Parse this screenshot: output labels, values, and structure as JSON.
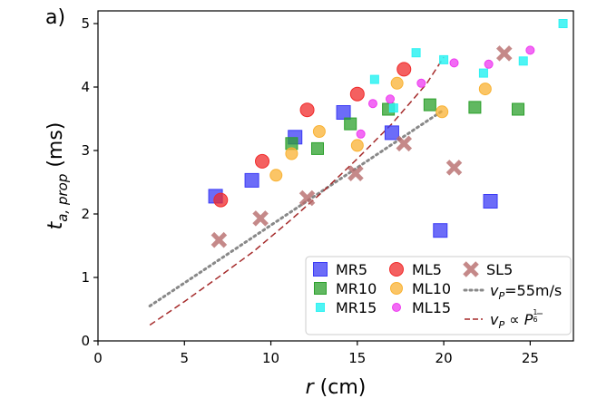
{
  "chart_data": {
    "type": "scatter",
    "panel_label": "a)",
    "xlabel": {
      "var": "r",
      "unit": "(cm)"
    },
    "ylabel": {
      "var": "t",
      "sub": "a, prop",
      "unit": "(ms)"
    },
    "xlim": [
      0,
      27.5
    ],
    "ylim": [
      0,
      5.2
    ],
    "xticks": [
      0,
      5,
      10,
      15,
      20,
      25
    ],
    "yticks": [
      0,
      1,
      2,
      3,
      4,
      5
    ],
    "grid": false,
    "legend_position": "bottom-right",
    "series": [
      {
        "name": "MR5",
        "marker": "square",
        "size": "large",
        "color": "#3b3bf5",
        "points": [
          [
            6.8,
            2.28
          ],
          [
            8.9,
            2.53
          ],
          [
            11.4,
            3.21
          ],
          [
            14.2,
            3.6
          ],
          [
            17.0,
            3.28
          ],
          [
            19.8,
            1.74
          ],
          [
            22.7,
            2.2
          ]
        ]
      },
      {
        "name": "MR10",
        "marker": "square",
        "size": "medium",
        "color": "#2ca02c",
        "points": [
          [
            11.2,
            3.11
          ],
          [
            12.7,
            3.03
          ],
          [
            14.6,
            3.42
          ],
          [
            16.8,
            3.65
          ],
          [
            19.2,
            3.72
          ],
          [
            21.8,
            3.68
          ],
          [
            24.3,
            3.65
          ]
        ]
      },
      {
        "name": "MR15",
        "marker": "square",
        "size": "small",
        "color": "#2ff2f2",
        "points": [
          [
            16.0,
            4.12
          ],
          [
            17.1,
            3.67
          ],
          [
            18.4,
            4.54
          ],
          [
            20.0,
            4.43
          ],
          [
            22.3,
            4.22
          ],
          [
            24.6,
            4.41
          ],
          [
            26.9,
            5.0
          ]
        ]
      },
      {
        "name": "ML5",
        "marker": "circle",
        "size": "large",
        "color": "#f02b2b",
        "points": [
          [
            7.1,
            2.22
          ],
          [
            9.5,
            2.83
          ],
          [
            12.1,
            3.64
          ],
          [
            15.0,
            3.89
          ],
          [
            17.7,
            4.28
          ]
        ]
      },
      {
        "name": "ML10",
        "marker": "circle",
        "size": "medium",
        "color": "#f9b233",
        "points": [
          [
            10.3,
            2.61
          ],
          [
            11.2,
            2.95
          ],
          [
            12.8,
            3.3
          ],
          [
            15.0,
            3.08
          ],
          [
            17.3,
            4.06
          ],
          [
            19.9,
            3.61
          ],
          [
            22.4,
            3.97
          ]
        ]
      },
      {
        "name": "ML15",
        "marker": "circle",
        "size": "small",
        "color": "#ee3af0",
        "points": [
          [
            15.2,
            3.26
          ],
          [
            15.9,
            3.74
          ],
          [
            16.9,
            3.81
          ],
          [
            18.7,
            4.06
          ],
          [
            20.6,
            4.38
          ],
          [
            22.6,
            4.36
          ],
          [
            25.0,
            4.58
          ]
        ]
      },
      {
        "name": "SL5",
        "marker": "x",
        "size": "large",
        "color": "#b76b6b",
        "points": [
          [
            7.0,
            1.59
          ],
          [
            9.4,
            1.93
          ],
          [
            12.1,
            2.25
          ],
          [
            14.9,
            2.64
          ],
          [
            17.7,
            3.11
          ],
          [
            20.6,
            2.73
          ],
          [
            23.5,
            4.53
          ]
        ]
      }
    ],
    "fits": [
      {
        "name": "v_P=55m/s",
        "style": "dotted",
        "color": "#888888",
        "x": [
          3,
          20
        ],
        "y": [
          0.55,
          3.64
        ]
      },
      {
        "name": "v_P ∝ P^(1/6)",
        "style": "dashed",
        "color": "#a52a2a",
        "x": [
          3,
          5,
          7,
          9,
          11,
          13,
          15,
          17,
          19,
          20
        ],
        "y": [
          0.25,
          0.62,
          1.01,
          1.41,
          1.87,
          2.35,
          2.87,
          3.42,
          4.05,
          4.47
        ]
      }
    ],
    "legend": {
      "columns": [
        [
          {
            "series": "MR5",
            "label": "MR5"
          },
          {
            "series": "MR10",
            "label": "MR10"
          },
          {
            "series": "MR15",
            "label": "MR15"
          }
        ],
        [
          {
            "series": "ML5",
            "label": "ML5"
          },
          {
            "series": "ML10",
            "label": "ML10"
          },
          {
            "series": "ML15",
            "label": "ML15"
          }
        ],
        [
          {
            "series": "SL5",
            "label": "SL5"
          },
          {
            "fit": 0,
            "label": "v_P=55m/s"
          },
          {
            "fit": 1,
            "label": "v_P ∝ P^(1/6)"
          }
        ]
      ]
    }
  }
}
